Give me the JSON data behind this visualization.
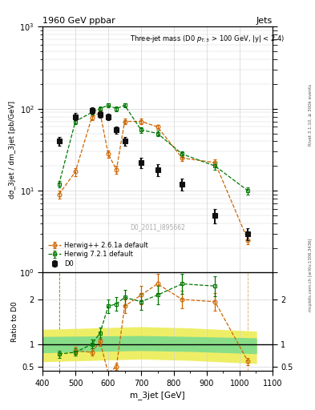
{
  "title_left": "1960 GeV ppbar",
  "title_right": "Jets",
  "watermark": "D0_2011_I895662",
  "rivet_label": "Rivet 3.1.10, ≥ 300k events",
  "mcplots_label": "mcplots.cern.ch [arXiv:1306.3436]",
  "xlabel": "m_3jet [GeV]",
  "ylabel": "dσ_3jet / dm_3jet [pb/GeV]",
  "ylabel_ratio": "Ratio to D0",
  "d0_x": [
    450,
    500,
    550,
    575,
    600,
    625,
    650,
    700,
    750,
    825,
    925,
    1025
  ],
  "d0_y": [
    40,
    80,
    95,
    85,
    80,
    55,
    40,
    22,
    18,
    12,
    5,
    3
  ],
  "d0_yerr_lo": [
    5,
    8,
    8,
    7,
    7,
    6,
    5,
    3,
    3,
    2,
    1,
    0.5
  ],
  "d0_yerr_hi": [
    5,
    8,
    8,
    7,
    7,
    6,
    5,
    3,
    3,
    2,
    1,
    0.5
  ],
  "hw_x": [
    450,
    500,
    550,
    575,
    600,
    625,
    650,
    700,
    750,
    825,
    925,
    1025
  ],
  "hw_y": [
    9,
    17,
    78,
    90,
    28,
    18,
    70,
    70,
    60,
    25,
    22,
    2.5
  ],
  "hw_yerr_lo": [
    1,
    2,
    5,
    6,
    3,
    2,
    5,
    5,
    4,
    2,
    2,
    0.3
  ],
  "hw_yerr_hi": [
    1,
    2,
    5,
    6,
    3,
    2,
    5,
    5,
    4,
    2,
    2,
    0.3
  ],
  "hw72_x": [
    450,
    500,
    550,
    575,
    600,
    625,
    650,
    700,
    750,
    825,
    925,
    1025
  ],
  "hw72_y": [
    12,
    70,
    90,
    100,
    110,
    100,
    110,
    55,
    50,
    28,
    20,
    10
  ],
  "hw72_yerr_lo": [
    1,
    5,
    6,
    7,
    7,
    7,
    7,
    4,
    4,
    2,
    2,
    1
  ],
  "hw72_yerr_hi": [
    1,
    5,
    6,
    7,
    7,
    7,
    7,
    4,
    4,
    2,
    2,
    1
  ],
  "ratio_hw_x": [
    450,
    500,
    550,
    575,
    600,
    625,
    650,
    700,
    750,
    825,
    925,
    1025
  ],
  "ratio_hw_y": [
    null,
    0.85,
    0.82,
    1.06,
    0.35,
    0.5,
    1.85,
    2.1,
    2.35,
    2.0,
    1.95,
    0.62
  ],
  "ratio_hw_yerr_lo": [
    null,
    0.1,
    0.08,
    0.1,
    0.06,
    0.07,
    0.15,
    0.2,
    0.22,
    0.2,
    0.2,
    0.08
  ],
  "ratio_hw_yerr_hi": [
    null,
    0.1,
    0.08,
    0.1,
    0.06,
    0.07,
    0.15,
    0.2,
    0.22,
    0.2,
    0.2,
    0.08
  ],
  "ratio_hw72_x": [
    450,
    500,
    550,
    575,
    600,
    625,
    650,
    700,
    750,
    825,
    925,
    1025
  ],
  "ratio_hw72_y": [
    0.78,
    0.82,
    1.0,
    1.25,
    1.85,
    1.9,
    2.05,
    1.95,
    2.1,
    2.35,
    2.3,
    null
  ],
  "ratio_hw72_yerr_lo": [
    0.08,
    0.08,
    0.1,
    0.12,
    0.15,
    0.15,
    0.17,
    0.18,
    0.2,
    0.22,
    0.22,
    null
  ],
  "ratio_hw72_yerr_hi": [
    0.08,
    0.08,
    0.1,
    0.12,
    0.15,
    0.15,
    0.17,
    0.18,
    0.2,
    0.22,
    0.22,
    null
  ],
  "band_yellow_x": [
    400,
    550,
    700,
    850,
    1050
  ],
  "band_yellow_lo": [
    0.62,
    0.65,
    0.68,
    0.65,
    0.58
  ],
  "band_yellow_hi": [
    1.32,
    1.35,
    1.38,
    1.35,
    1.28
  ],
  "band_green_x": [
    400,
    550,
    700,
    850,
    1050
  ],
  "band_green_lo": [
    0.82,
    0.85,
    0.87,
    0.85,
    0.8
  ],
  "band_green_hi": [
    1.16,
    1.17,
    1.18,
    1.16,
    1.13
  ],
  "color_hw": "#cc6600",
  "color_hw72": "#007700",
  "color_d0": "#111111",
  "color_green_band": "#88dd88",
  "color_yellow_band": "#eeee66",
  "bg_color": "#ffffff"
}
